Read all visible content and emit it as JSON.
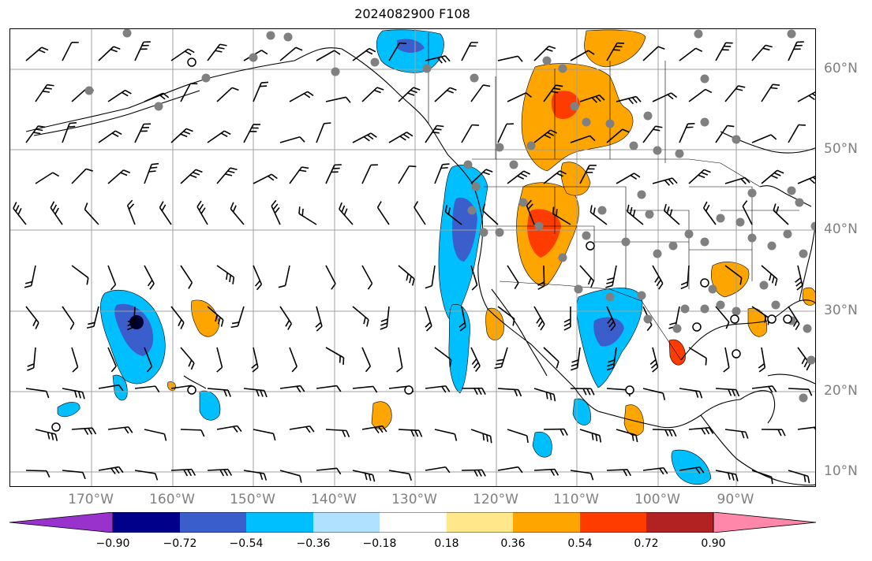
{
  "title": "2024082900 F108",
  "longitude_labels": [
    "170°W",
    "160°W",
    "150°W",
    "140°W",
    "130°W",
    "120°W",
    "110°W",
    "100°W",
    "90°W"
  ],
  "latitude_labels": [
    "60°N",
    "50°N",
    "40°N",
    "30°N",
    "20°N",
    "10°N"
  ],
  "colorbar": {
    "ticks": [
      "−0.90",
      "−0.72",
      "−0.54",
      "−0.36",
      "−0.18",
      "0.18",
      "0.36",
      "0.54",
      "0.72",
      "0.90"
    ],
    "colors": [
      "#9932cc",
      "#00008b",
      "#3a5fcd",
      "#00bfff",
      "#b0e2ff",
      "#ffffff",
      "#ffe78a",
      "#ffa500",
      "#ff3c00",
      "#b22222",
      "#ff88aa"
    ]
  },
  "map_colors": {
    "grid": "#a0a0a0",
    "coast": "#000000",
    "station": "#808080"
  },
  "anomaly_regions": [
    {
      "name": "alaska-gulf-negative",
      "sign": "negative"
    },
    {
      "name": "west-coast-negative",
      "sign": "negative"
    },
    {
      "name": "north-pacific-low",
      "sign": "negative"
    },
    {
      "name": "mexico-negative",
      "sign": "negative"
    },
    {
      "name": "canada-positive",
      "sign": "positive"
    },
    {
      "name": "great-basin-positive",
      "sign": "positive"
    },
    {
      "name": "southeast-positive",
      "sign": "positive"
    }
  ]
}
